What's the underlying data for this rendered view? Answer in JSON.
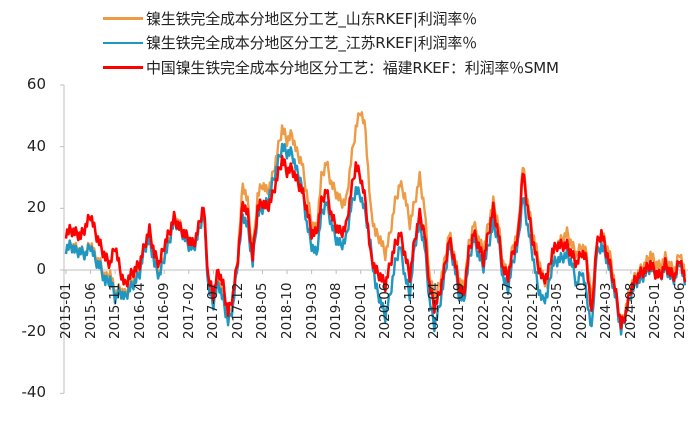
{
  "chart_data": {
    "type": "line",
    "title": "",
    "xlabel": "",
    "ylabel": "",
    "ylim": [
      -40,
      60
    ],
    "yticks": [
      60,
      40,
      20,
      0,
      -20,
      -40
    ],
    "grid": false,
    "legend_position": "top",
    "x_tick_labels": [
      "2015-01",
      "2015-06",
      "2015-11",
      "2016-04",
      "2016-09",
      "2017-02",
      "2017-07",
      "2017-12",
      "2018-05",
      "2018-10",
      "2019-03",
      "2019-08",
      "2020-01",
      "2020-06",
      "2020-11",
      "2021-04",
      "2021-09",
      "2022-02",
      "2022-07",
      "2022-12",
      "2023-05",
      "2023-10",
      "2024-03",
      "2024-08",
      "2025-01",
      "2025-06"
    ],
    "x_start": "2015-01",
    "x_frequency": "monthly",
    "series": [
      {
        "name": "镍生铁完全成本分地区分工艺_山东RKEF|利润率％",
        "color": "#EE9B46",
        "values": [
          7,
          8,
          7,
          6,
          5,
          9,
          4,
          2,
          -3,
          -1,
          -8,
          -6,
          -8,
          -5,
          -3,
          0,
          8,
          11,
          3,
          -1,
          5,
          10,
          17,
          15,
          12,
          9,
          8,
          13,
          20,
          -5,
          -10,
          -3,
          -8,
          -16,
          -10,
          5,
          28,
          22,
          5,
          24,
          28,
          25,
          30,
          38,
          46,
          42,
          44,
          38,
          35,
          25,
          15,
          13,
          30,
          35,
          28,
          25,
          22,
          22,
          35,
          46,
          52,
          45,
          20,
          12,
          10,
          5,
          12,
          22,
          28,
          24,
          15,
          22,
          30,
          20,
          -2,
          -9,
          -5,
          2,
          12,
          5,
          -3,
          -6,
          8,
          15,
          10,
          6,
          15,
          22,
          15,
          2,
          -2,
          8,
          12,
          34,
          22,
          12,
          5,
          -2,
          -5,
          5,
          8,
          10,
          12,
          8,
          5,
          8,
          5,
          -10,
          8,
          12,
          8,
          3,
          -8,
          -18,
          -12,
          -5,
          -2,
          0,
          2,
          5,
          2,
          1,
          4,
          1,
          0,
          6,
          -2
        ]
      },
      {
        "name": "镍生铁完全成本分地区分工艺_江苏RKEF|利润率％",
        "color": "#1F97C1",
        "values": [
          7,
          8,
          6,
          6,
          5,
          8,
          3,
          1,
          -4,
          -3,
          -9,
          -7,
          -9,
          -6,
          -4,
          -1,
          7,
          10,
          2,
          -2,
          4,
          9,
          16,
          14,
          11,
          8,
          7,
          12,
          19,
          -6,
          -11,
          -4,
          -10,
          -17,
          -12,
          3,
          18,
          14,
          2,
          18,
          20,
          22,
          28,
          34,
          40,
          38,
          38,
          32,
          28,
          15,
          8,
          5,
          18,
          22,
          15,
          10,
          8,
          10,
          20,
          26,
          24,
          18,
          8,
          -5,
          -10,
          -15,
          -8,
          2,
          8,
          -2,
          -8,
          8,
          15,
          8,
          -10,
          -18,
          -12,
          -3,
          8,
          2,
          -8,
          -10,
          3,
          10,
          5,
          1,
          8,
          15,
          10,
          -3,
          -6,
          3,
          8,
          24,
          14,
          5,
          -5,
          -10,
          -8,
          2,
          3,
          4,
          5,
          2,
          -5,
          0,
          -8,
          -20,
          5,
          8,
          4,
          -2,
          -10,
          -20,
          -14,
          -8,
          -4,
          -3,
          -1,
          1,
          -1,
          -2,
          1,
          -2,
          -3,
          3,
          -5
        ]
      },
      {
        "name": "中国镍生铁完全成本分地区分工艺：福建RKEF：利润率％SMM",
        "color": "#FF0000",
        "values": [
          12,
          13,
          12,
          11,
          14,
          18,
          12,
          8,
          4,
          2,
          8,
          0,
          -5,
          -2,
          0,
          2,
          8,
          13,
          5,
          2,
          8,
          12,
          17,
          14,
          12,
          10,
          8,
          14,
          21,
          -3,
          -8,
          0,
          -5,
          -14,
          -8,
          4,
          22,
          18,
          4,
          20,
          22,
          20,
          24,
          30,
          36,
          32,
          33,
          29,
          26,
          20,
          12,
          12,
          22,
          26,
          18,
          14,
          12,
          14,
          25,
          34,
          30,
          22,
          5,
          0,
          -2,
          -5,
          2,
          8,
          12,
          5,
          -2,
          10,
          18,
          12,
          -5,
          -12,
          -8,
          0,
          10,
          4,
          -5,
          -8,
          6,
          12,
          8,
          3,
          12,
          20,
          12,
          0,
          -2,
          6,
          10,
          32,
          20,
          10,
          2,
          -3,
          -2,
          6,
          8,
          8,
          8,
          5,
          2,
          6,
          3,
          -15,
          8,
          12,
          6,
          0,
          -8,
          -18,
          -14,
          -6,
          -3,
          -1,
          0,
          2,
          -1,
          -2,
          2,
          -1,
          -2,
          4,
          -4
        ]
      }
    ]
  },
  "legend": {
    "items": [
      {
        "label": "镍生铁完全成本分地区分工艺_山东RKEF|利润率％",
        "color": "#EE9B46"
      },
      {
        "label": "镍生铁完全成本分地区分工艺_江苏RKEF|利润率％",
        "color": "#1F97C1"
      },
      {
        "label": "中国镍生铁完全成本分地区分工艺：福建RKEF：利润率％SMM",
        "color": "#FF0000"
      }
    ]
  },
  "colors": {
    "axis": "#BFBFBF",
    "text": "#222222"
  }
}
